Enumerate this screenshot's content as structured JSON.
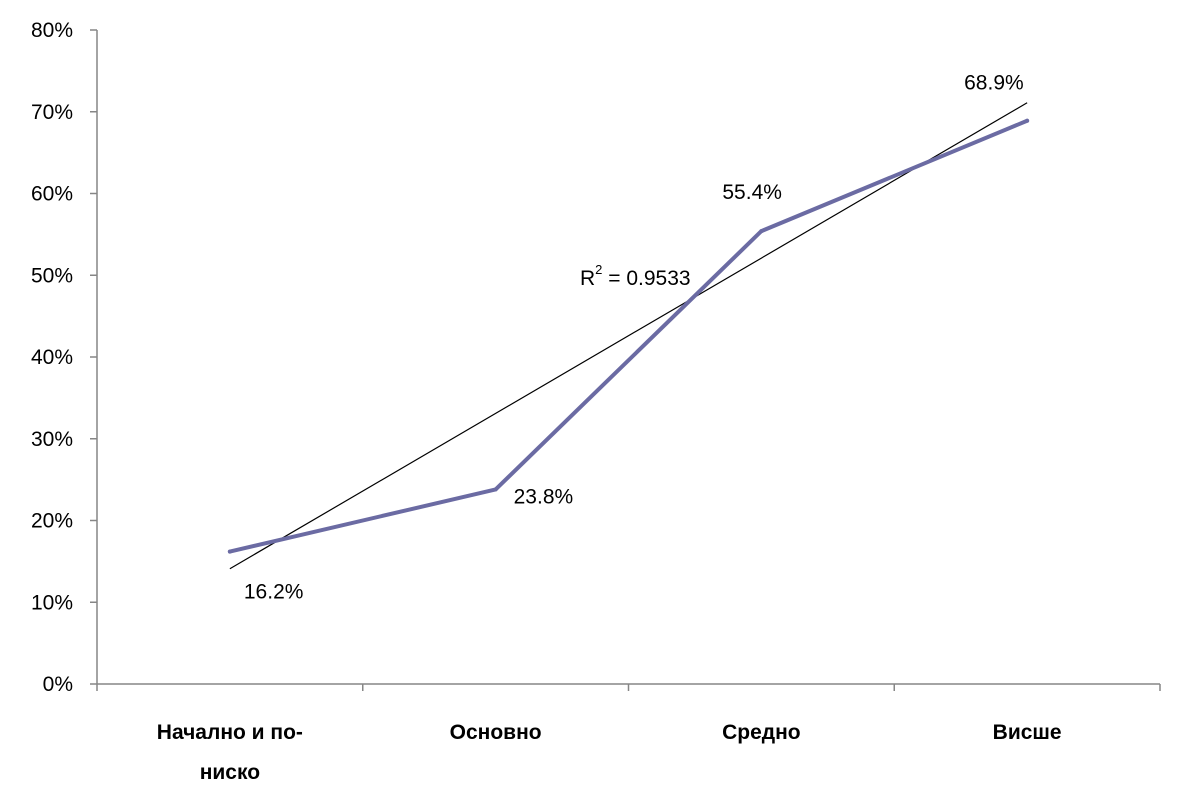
{
  "chart_data": {
    "type": "line",
    "categories": [
      [
        "Начално и по-",
        "ниско"
      ],
      [
        "Основно"
      ],
      [
        "Средно"
      ],
      [
        "Висше"
      ]
    ],
    "series": [
      {
        "values": [
          16.2,
          23.8,
          55.4,
          68.9
        ],
        "labels": [
          "16.2%",
          "23.8%",
          "55.4%",
          "68.9%"
        ],
        "color": "#6b6ba3"
      }
    ],
    "trendline": {
      "type": "linear",
      "start_value": 14.1,
      "end_value": 71.1,
      "color": "#000000",
      "r2_label": {
        "prefix": "R",
        "superscript": "2",
        "text": " = 0.9533"
      }
    },
    "ylim": [
      0,
      80
    ],
    "y_ticks": [
      "0%",
      "10%",
      "20%",
      "30%",
      "40%",
      "50%",
      "60%",
      "70%",
      "80%"
    ],
    "xlabel": "",
    "ylabel": "",
    "title": "",
    "grid": false,
    "legend": "none"
  }
}
